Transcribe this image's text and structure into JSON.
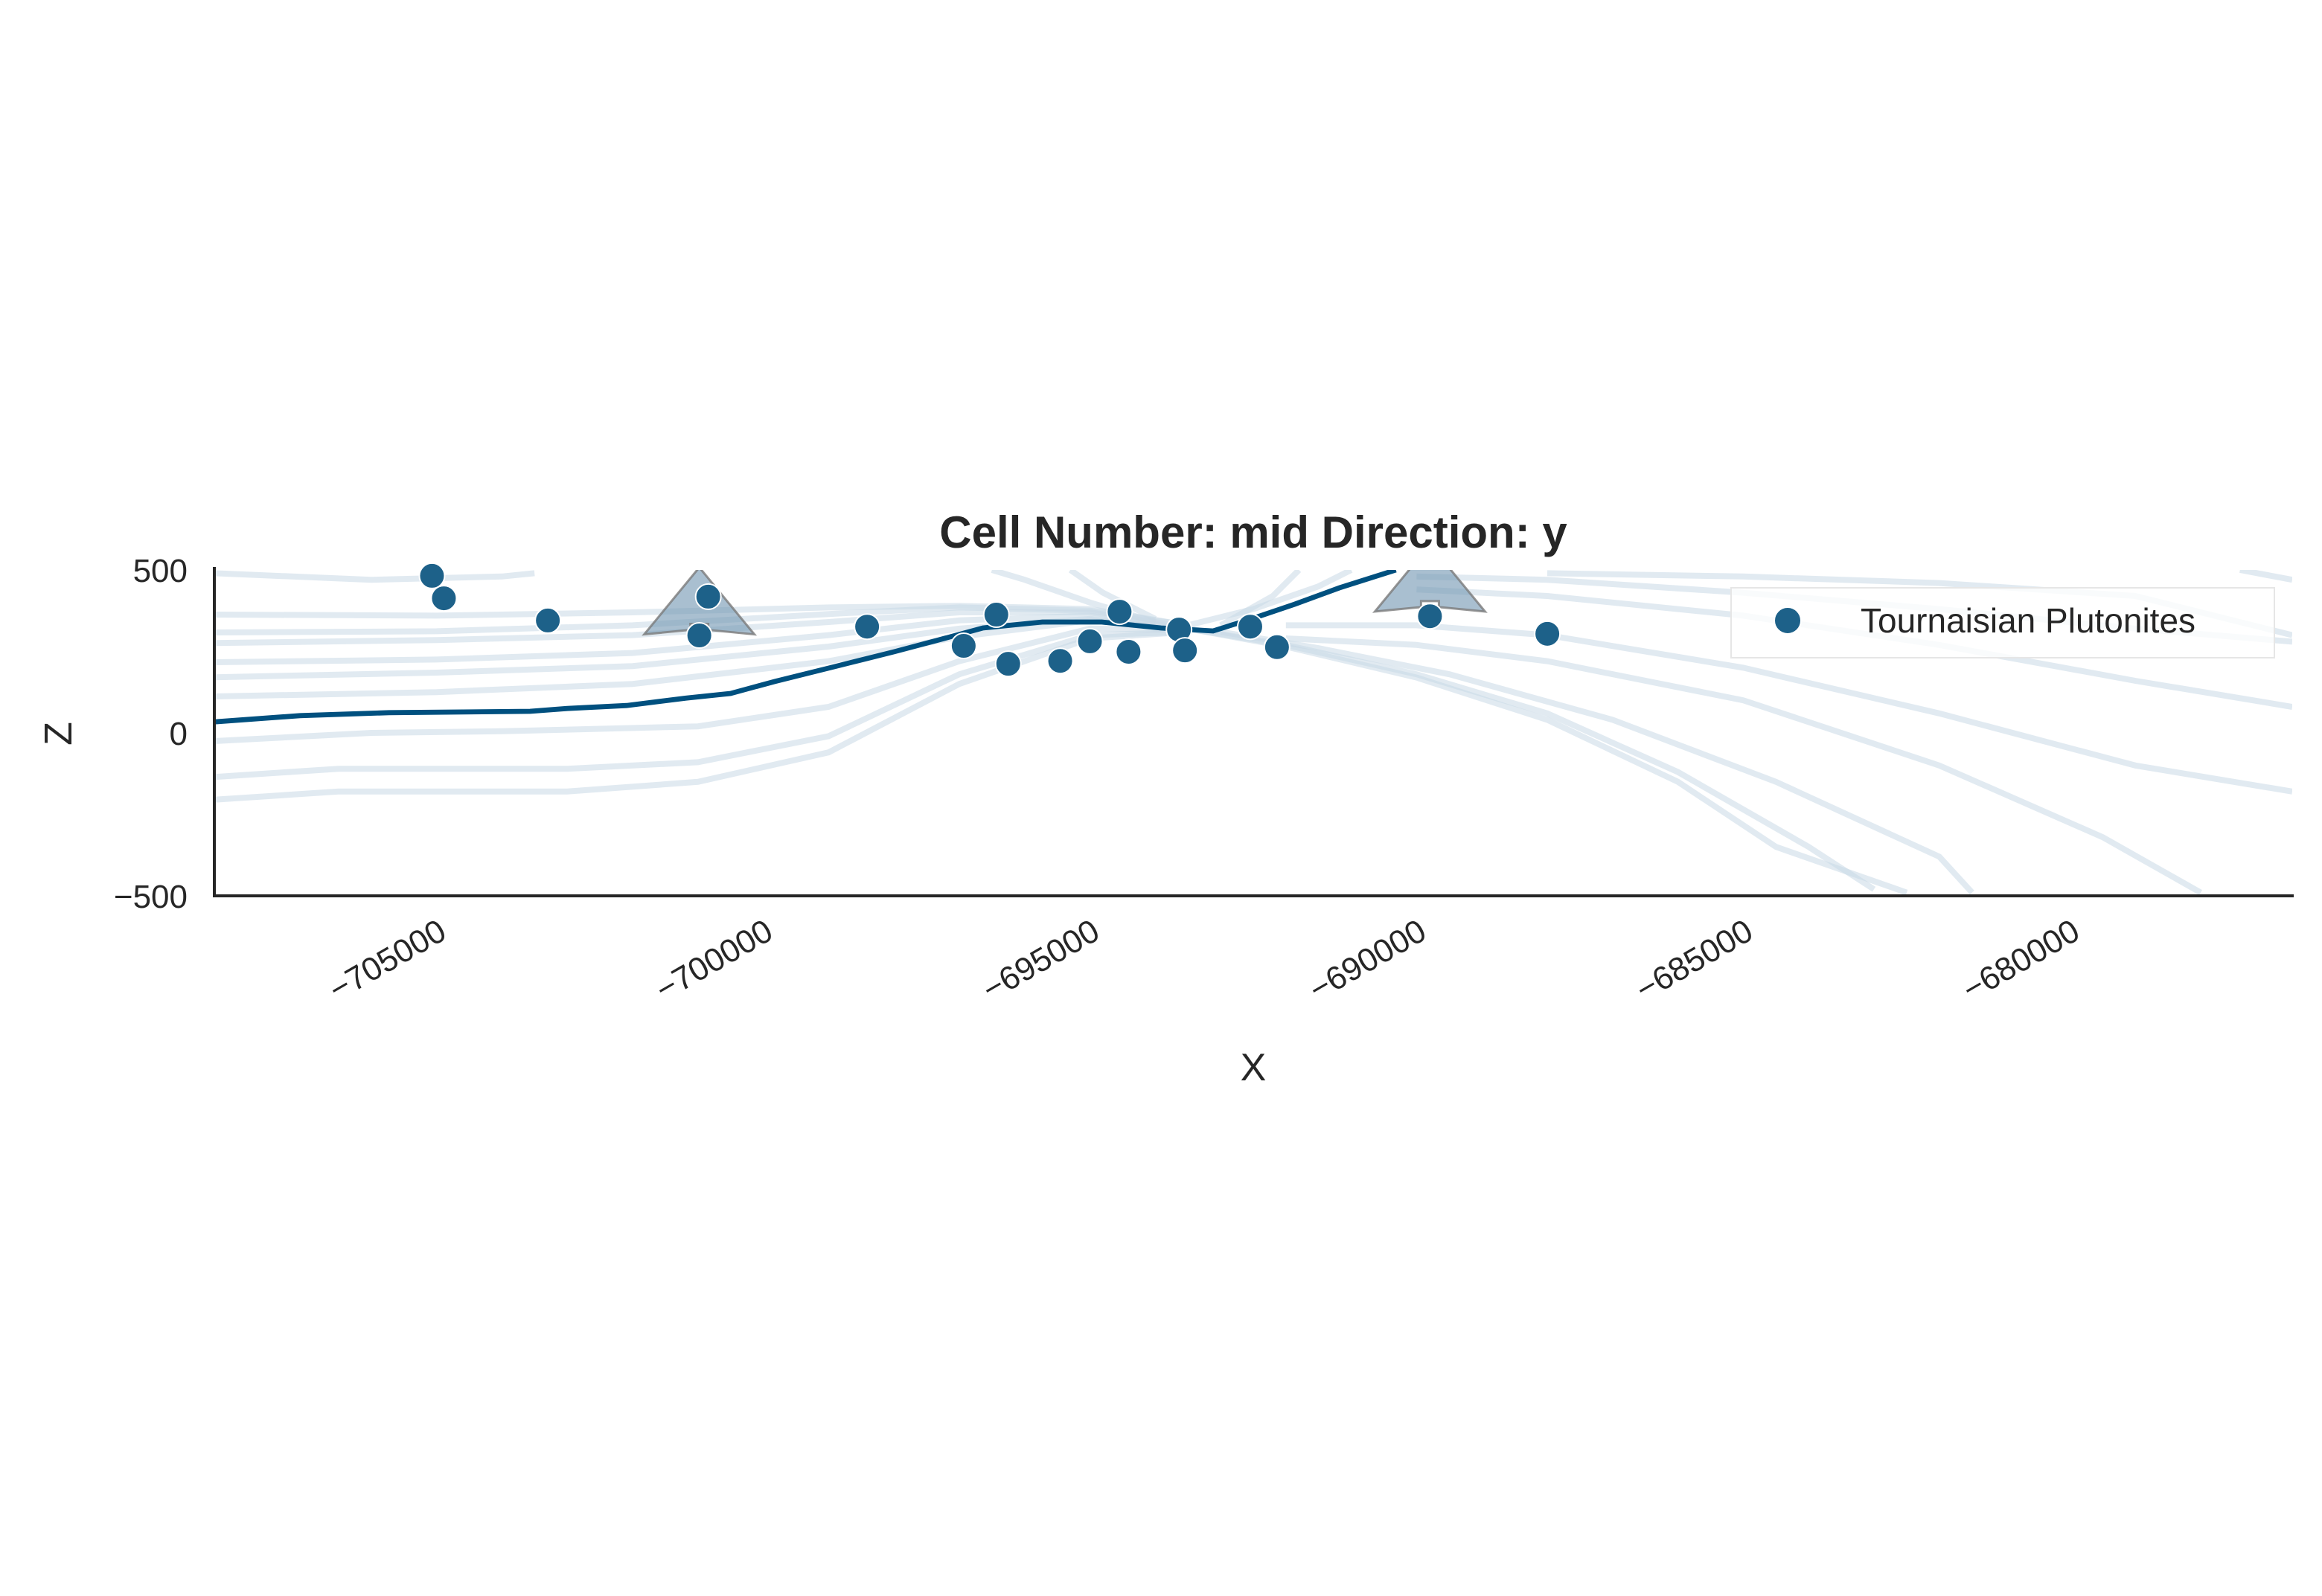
{
  "chart_data": {
    "type": "scatter",
    "title": "Cell Number: mid Direction: y",
    "xlabel": "X",
    "ylabel": "Z",
    "xlim": [
      -708400,
      -676600
    ],
    "ylim": [
      -500,
      500
    ],
    "xticks": [
      -705000,
      -700000,
      -695000,
      -690000,
      -685000,
      -680000
    ],
    "xtick_labels": [
      "−705000",
      "−700000",
      "−695000",
      "−690000",
      "−685000",
      "−680000"
    ],
    "yticks": [
      500,
      0,
      -500
    ],
    "ytick_labels": [
      "500",
      "0",
      "−500"
    ],
    "grid": false,
    "legend": {
      "placement": "upper-right",
      "entries": [
        "Tournaisian Plutonites"
      ]
    },
    "colors": {
      "points": "#1d6189",
      "surface": "#00507f",
      "scalar_field": "#c9d9e5",
      "orientation": "#6f94b0"
    },
    "series": [
      {
        "name": "Tournaisian Plutonites",
        "type": "scatter",
        "points": [
          [
            -705069,
            482
          ],
          [
            -704887,
            413
          ],
          [
            -703296,
            345
          ],
          [
            -700841,
            418
          ],
          [
            -700978,
            299
          ],
          [
            -698410,
            326
          ],
          [
            -696932,
            267
          ],
          [
            -696432,
            363
          ],
          [
            -696250,
            212
          ],
          [
            -695455,
            221
          ],
          [
            -695000,
            281
          ],
          [
            -694546,
            372
          ],
          [
            -694409,
            249
          ],
          [
            -693637,
            317
          ],
          [
            -693546,
            253
          ],
          [
            -692546,
            326
          ],
          [
            -692137,
            263
          ],
          [
            -689796,
            358
          ],
          [
            -688000,
            304
          ]
        ]
      }
    ],
    "orientations": [
      [
        -700978,
        380
      ],
      [
        -689796,
        450
      ]
    ],
    "surface_line": [
      [
        -708400,
        34
      ],
      [
        -707091,
        53
      ],
      [
        -705728,
        62
      ],
      [
        -703569,
        66
      ],
      [
        -703000,
        75
      ],
      [
        -702091,
        84
      ],
      [
        -701182,
        107
      ],
      [
        -700500,
        121
      ],
      [
        -699819,
        158
      ],
      [
        -698909,
        203
      ],
      [
        -698000,
        249
      ],
      [
        -697319,
        285
      ],
      [
        -696637,
        322
      ],
      [
        -695728,
        340
      ],
      [
        -694819,
        340
      ],
      [
        -693910,
        322
      ],
      [
        -693114,
        313
      ],
      [
        -692546,
        349
      ],
      [
        -691864,
        395
      ],
      [
        -691182,
        445
      ],
      [
        -690318,
        500
      ]
    ],
    "scalar_field_lines": [
      [
        [
          -708400,
          490
        ],
        [
          -706000,
          470
        ],
        [
          -704000,
          480
        ],
        [
          -703500,
          490
        ]
      ],
      [
        [
          -708400,
          363
        ],
        [
          -705000,
          360
        ],
        [
          -702000,
          370
        ],
        [
          -699000,
          385
        ],
        [
          -697000,
          390
        ],
        [
          -695000,
          380
        ],
        [
          -693500,
          330
        ]
      ],
      [
        [
          -708400,
          308
        ],
        [
          -705000,
          312
        ],
        [
          -702000,
          330
        ],
        [
          -699000,
          365
        ],
        [
          -697000,
          385
        ],
        [
          -695000,
          375
        ],
        [
          -693500,
          330
        ]
      ],
      [
        [
          -708400,
          276
        ],
        [
          -705000,
          285
        ],
        [
          -702000,
          300
        ],
        [
          -699000,
          340
        ],
        [
          -697000,
          370
        ],
        [
          -695000,
          370
        ],
        [
          -693500,
          325
        ]
      ],
      [
        [
          -708400,
          217
        ],
        [
          -705000,
          225
        ],
        [
          -702000,
          245
        ],
        [
          -699000,
          300
        ],
        [
          -697000,
          345
        ],
        [
          -695000,
          360
        ],
        [
          -693500,
          320
        ]
      ],
      [
        [
          -708400,
          171
        ],
        [
          -705000,
          185
        ],
        [
          -702000,
          205
        ],
        [
          -699000,
          265
        ],
        [
          -697000,
          320
        ],
        [
          -695000,
          350
        ],
        [
          -693500,
          315
        ]
      ],
      [
        [
          -708400,
          112
        ],
        [
          -705000,
          125
        ],
        [
          -702000,
          150
        ],
        [
          -699000,
          220
        ],
        [
          -697000,
          295
        ],
        [
          -695000,
          345
        ],
        [
          -693500,
          315
        ]
      ],
      [
        [
          -708400,
          -25
        ],
        [
          -706000,
          0
        ],
        [
          -704000,
          5
        ],
        [
          -701000,
          20
        ],
        [
          -699000,
          80
        ],
        [
          -697000,
          220
        ],
        [
          -695000,
          320
        ],
        [
          -693500,
          315
        ]
      ],
      [
        [
          -708400,
          -135
        ],
        [
          -706500,
          -110
        ],
        [
          -703000,
          -110
        ],
        [
          -701000,
          -90
        ],
        [
          -699000,
          -10
        ],
        [
          -697000,
          180
        ],
        [
          -695000,
          300
        ],
        [
          -693500,
          310
        ]
      ],
      [
        [
          -708400,
          -205
        ],
        [
          -706500,
          -180
        ],
        [
          -703000,
          -180
        ],
        [
          -701000,
          -150
        ],
        [
          -699000,
          -60
        ],
        [
          -697000,
          150
        ],
        [
          -695000,
          290
        ],
        [
          -693500,
          310
        ]
      ],
      [
        [
          -693500,
          320
        ],
        [
          -692000,
          270
        ],
        [
          -690000,
          180
        ],
        [
          -688000,
          60
        ],
        [
          -686000,
          -120
        ],
        [
          -684000,
          -350
        ],
        [
          -683000,
          -480
        ]
      ],
      [
        [
          -693500,
          320
        ],
        [
          -692000,
          265
        ],
        [
          -690000,
          170
        ],
        [
          -688000,
          40
        ],
        [
          -686000,
          -150
        ],
        [
          -684500,
          -350
        ],
        [
          -682500,
          -490
        ]
      ],
      [
        [
          -693000,
          310
        ],
        [
          -691500,
          260
        ],
        [
          -689500,
          180
        ],
        [
          -687000,
          40
        ],
        [
          -684500,
          -150
        ],
        [
          -682000,
          -380
        ],
        [
          -681500,
          -490
        ]
      ],
      [
        [
          -692000,
          290
        ],
        [
          -690000,
          270
        ],
        [
          -688000,
          220
        ],
        [
          -685000,
          100
        ],
        [
          -682000,
          -100
        ],
        [
          -679500,
          -320
        ],
        [
          -678000,
          -490
        ]
      ],
      [
        [
          -692000,
          330
        ],
        [
          -690000,
          330
        ],
        [
          -688000,
          300
        ],
        [
          -685000,
          200
        ],
        [
          -682000,
          60
        ],
        [
          -679000,
          -100
        ],
        [
          -676600,
          -180
        ]
      ],
      [
        [
          -690000,
          440
        ],
        [
          -688000,
          420
        ],
        [
          -685000,
          360
        ],
        [
          -682000,
          270
        ],
        [
          -679000,
          160
        ],
        [
          -676600,
          80
        ]
      ],
      [
        [
          -690000,
          480
        ],
        [
          -688000,
          470
        ],
        [
          -685000,
          430
        ],
        [
          -682000,
          380
        ],
        [
          -679000,
          320
        ],
        [
          -676600,
          280
        ]
      ],
      [
        [
          -688000,
          490
        ],
        [
          -685000,
          480
        ],
        [
          -682000,
          460
        ],
        [
          -679000,
          420
        ],
        [
          -676600,
          300
        ]
      ],
      [
        [
          -677400,
          500
        ],
        [
          -676600,
          470
        ]
      ],
      [
        [
          -693500,
          330
        ],
        [
          -692500,
          380
        ],
        [
          -691500,
          450
        ],
        [
          -691000,
          500
        ]
      ],
      [
        [
          -693000,
          330
        ],
        [
          -692200,
          420
        ],
        [
          -691800,
          500
        ]
      ],
      [
        [
          -694000,
          340
        ],
        [
          -695000,
          400
        ],
        [
          -696000,
          470
        ],
        [
          -696500,
          500
        ]
      ],
      [
        [
          -694000,
          350
        ],
        [
          -694800,
          430
        ],
        [
          -695300,
          500
        ]
      ]
    ]
  }
}
